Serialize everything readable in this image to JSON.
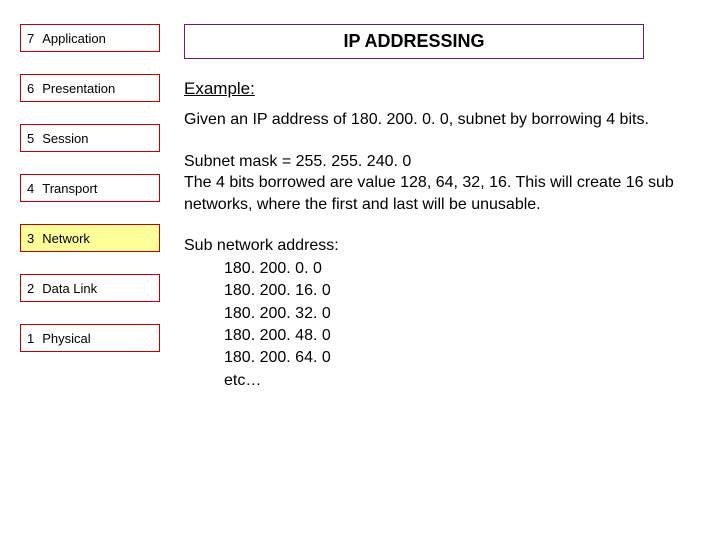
{
  "title": "IP ADDRESSING",
  "title_border_color": "#6a1b7a",
  "layers": [
    {
      "num": "7",
      "name": "Application",
      "border": "#c00000",
      "bg": "#ffffff"
    },
    {
      "num": "6",
      "name": "Presentation",
      "border": "#c00000",
      "bg": "#ffffff"
    },
    {
      "num": "5",
      "name": "Session",
      "border": "#c00000",
      "bg": "#ffffff"
    },
    {
      "num": "4",
      "name": "Transport",
      "border": "#c00000",
      "bg": "#ffffff"
    },
    {
      "num": "3",
      "name": "Network",
      "border": "#c00000",
      "bg": "#ffff99"
    },
    {
      "num": "2",
      "name": "Data Link",
      "border": "#c00000",
      "bg": "#ffffff"
    },
    {
      "num": "1",
      "name": "Physical",
      "border": "#c00000",
      "bg": "#ffffff"
    }
  ],
  "text_color": "#000000",
  "example_label": "Example:",
  "para1": "Given an IP address of 180. 200. 0. 0, subnet by borrowing 4 bits.",
  "para2": "Subnet mask = 255. 255. 240. 0\nThe 4 bits borrowed are value 128, 64, 32, 16. This will create 16 sub networks, where the first and last will be unusable.",
  "subnet_heading": "Sub network address:",
  "subnets": [
    "180. 200. 0. 0",
    "180. 200. 16. 0",
    "180. 200. 32. 0",
    "180. 200. 48. 0",
    "180. 200. 64. 0",
    " etc…"
  ]
}
